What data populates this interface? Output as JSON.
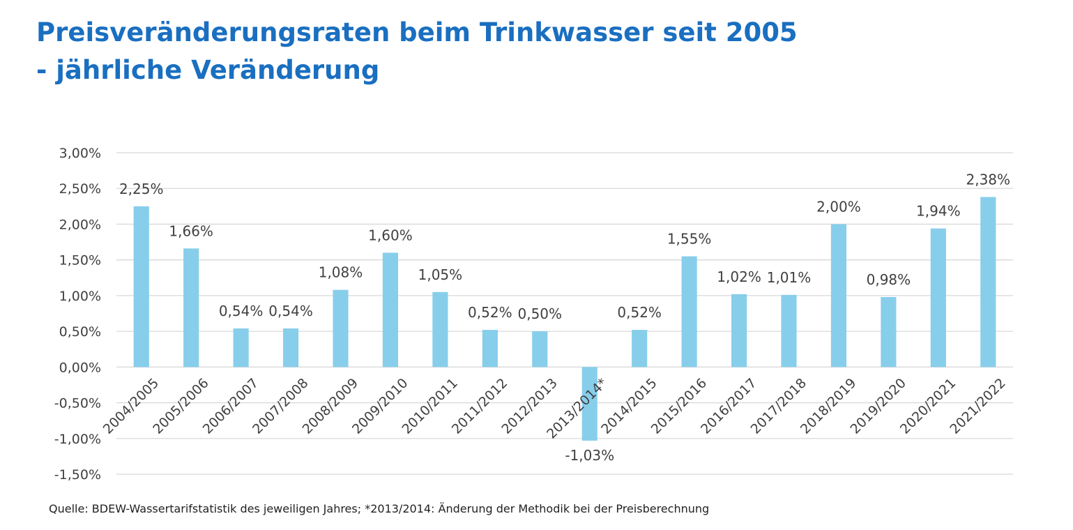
{
  "title_line1": "Preisveränderungsraten beim Trinkwasser seit 2005",
  "title_line2": "- jährliche Veränderung",
  "source": "Quelle: BDEW-Wassertarifstatistik des jeweiligen Jahres; *2013/2014: Änderung der Methodik bei der Preisberechnung",
  "colors": {
    "bar": "#87ceeb",
    "title": "#1a6fc0",
    "grid": "#d9d9d9",
    "text": "#404040"
  },
  "chart_data": {
    "type": "bar",
    "title": "Preisveränderungsraten beim Trinkwasser seit 2005 - jährliche Veränderung",
    "xlabel": "",
    "ylabel": "",
    "ylim": [
      -1.5,
      3.0
    ],
    "yticks": [
      3.0,
      2.5,
      2.0,
      1.5,
      1.0,
      0.5,
      0.0,
      -0.5,
      -1.0,
      -1.5
    ],
    "ytick_labels": [
      "3,00%",
      "2,50%",
      "2,00%",
      "1,50%",
      "1,00%",
      "0,50%",
      "0,00%",
      "-0,50%",
      "-1,00%",
      "-1,50%"
    ],
    "grid": true,
    "legend": "none",
    "categories": [
      "2004/2005",
      "2005/2006",
      "2006/2007",
      "2007/2008",
      "2008/2009",
      "2009/2010",
      "2010/2011",
      "2011/2012",
      "2012/2013",
      "2013/2014*",
      "2014/2015",
      "2015/2016",
      "2016/2017",
      "2017/2018",
      "2018/2019",
      "2019/2020",
      "2020/2021",
      "2021/2022"
    ],
    "values": [
      2.25,
      1.66,
      0.54,
      0.54,
      1.08,
      1.6,
      1.05,
      0.52,
      0.5,
      -1.03,
      0.52,
      1.55,
      1.02,
      1.01,
      2.0,
      0.98,
      1.94,
      2.38
    ],
    "value_labels": [
      "2,25%",
      "1,66%",
      "0,54%",
      "0,54%",
      "1,08%",
      "1,60%",
      "1,05%",
      "0,52%",
      "0,50%",
      "-1,03%",
      "0,52%",
      "1,55%",
      "1,02%",
      "1,01%",
      "2,00%",
      "0,98%",
      "1,94%",
      "2,38%"
    ]
  }
}
